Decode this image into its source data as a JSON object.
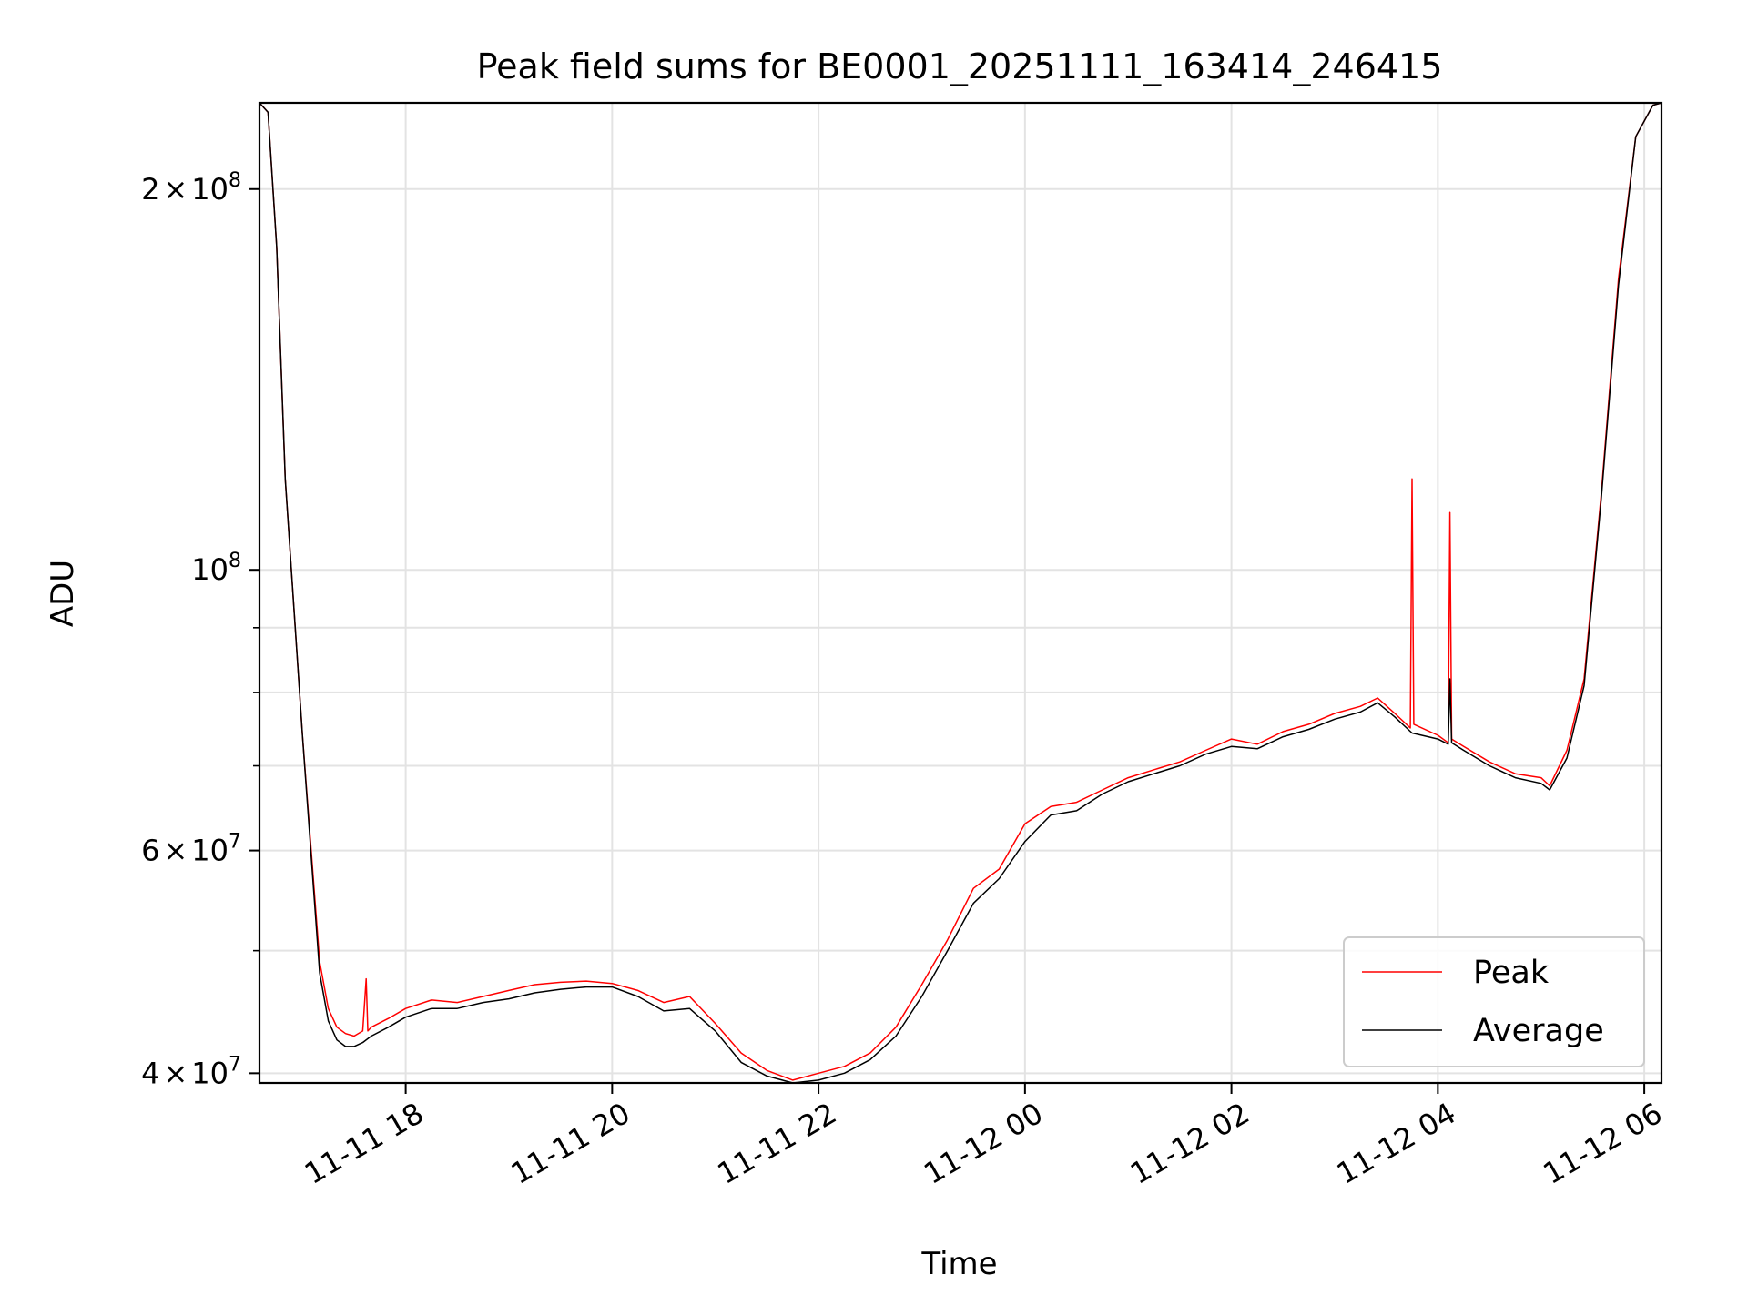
{
  "chart_data": {
    "type": "line",
    "title": "Peak field sums for BE0001_20251111_163414_246415",
    "xlabel": "Time",
    "ylabel": "ADU",
    "y_scale": "log",
    "grid": true,
    "legend_position": "lower-right",
    "xlim": [
      "2025-11-11 16:35",
      "2025-11-12 06:10"
    ],
    "ylim": [
      39300000,
      234000000
    ],
    "x_ticks": [
      {
        "value": "2025-11-11 18:00",
        "label": "11-11 18"
      },
      {
        "value": "2025-11-11 20:00",
        "label": "11-11 20"
      },
      {
        "value": "2025-11-11 22:00",
        "label": "11-11 22"
      },
      {
        "value": "2025-11-12 00:00",
        "label": "11-12 00"
      },
      {
        "value": "2025-11-12 02:00",
        "label": "11-12 02"
      },
      {
        "value": "2025-11-12 04:00",
        "label": "11-12 04"
      },
      {
        "value": "2025-11-12 06:00",
        "label": "11-12 06"
      }
    ],
    "y_ticks_major": [
      {
        "value": 40000000,
        "mantissa": "4",
        "times": "×",
        "base": "10",
        "exp": "7"
      },
      {
        "value": 60000000,
        "mantissa": "6",
        "times": "×",
        "base": "10",
        "exp": "7"
      },
      {
        "value": 100000000,
        "mantissa": "",
        "times": "",
        "base": "10",
        "exp": "8"
      },
      {
        "value": 200000000,
        "mantissa": "2",
        "times": "×",
        "base": "10",
        "exp": "8"
      }
    ],
    "y_ticks_minor": [
      50000000,
      70000000,
      80000000,
      90000000
    ],
    "series": [
      {
        "name": "Peak",
        "color": "#ff0000",
        "x": [
          "2025-11-11 16:35",
          "2025-11-11 16:40",
          "2025-11-11 16:45",
          "2025-11-11 16:50",
          "2025-11-11 17:00",
          "2025-11-11 17:10",
          "2025-11-11 17:15",
          "2025-11-11 17:20",
          "2025-11-11 17:25",
          "2025-11-11 17:30",
          "2025-11-11 17:35",
          "2025-11-11 17:37",
          "2025-11-11 17:38",
          "2025-11-11 17:40",
          "2025-11-11 17:50",
          "2025-11-11 18:00",
          "2025-11-11 18:15",
          "2025-11-11 18:30",
          "2025-11-11 18:45",
          "2025-11-11 19:00",
          "2025-11-11 19:15",
          "2025-11-11 19:30",
          "2025-11-11 19:45",
          "2025-11-11 20:00",
          "2025-11-11 20:15",
          "2025-11-11 20:30",
          "2025-11-11 20:45",
          "2025-11-11 21:00",
          "2025-11-11 21:15",
          "2025-11-11 21:30",
          "2025-11-11 21:45",
          "2025-11-11 22:00",
          "2025-11-11 22:15",
          "2025-11-11 22:30",
          "2025-11-11 22:45",
          "2025-11-11 23:00",
          "2025-11-11 23:15",
          "2025-11-11 23:30",
          "2025-11-11 23:45",
          "2025-11-12 00:00",
          "2025-11-12 00:15",
          "2025-11-12 00:30",
          "2025-11-12 00:45",
          "2025-11-12 01:00",
          "2025-11-12 01:15",
          "2025-11-12 01:30",
          "2025-11-12 01:45",
          "2025-11-12 02:00",
          "2025-11-12 02:15",
          "2025-11-12 02:30",
          "2025-11-12 02:45",
          "2025-11-12 03:00",
          "2025-11-12 03:15",
          "2025-11-12 03:25",
          "2025-11-12 03:35",
          "2025-11-12 03:44",
          "2025-11-12 03:45",
          "2025-11-12 03:46",
          "2025-11-12 04:00",
          "2025-11-12 04:06",
          "2025-11-12 04:07",
          "2025-11-12 04:08",
          "2025-11-12 04:15",
          "2025-11-12 04:30",
          "2025-11-12 04:45",
          "2025-11-12 05:00",
          "2025-11-12 05:05",
          "2025-11-12 05:15",
          "2025-11-12 05:25",
          "2025-11-12 05:35",
          "2025-11-12 05:45",
          "2025-11-12 05:55",
          "2025-11-12 06:05",
          "2025-11-12 06:10"
        ],
        "y": [
          234000000,
          230000000,
          180000000,
          118000000,
          74000000,
          49000000,
          45000000,
          43500000,
          43000000,
          42800000,
          43200000,
          47500000,
          43200000,
          43500000,
          44200000,
          45000000,
          45700000,
          45500000,
          46000000,
          46500000,
          47000000,
          47200000,
          47300000,
          47100000,
          46500000,
          45500000,
          46000000,
          43800000,
          41500000,
          40200000,
          39500000,
          40000000,
          40500000,
          41500000,
          43500000,
          47000000,
          51000000,
          56000000,
          58000000,
          63000000,
          65000000,
          65500000,
          67000000,
          68500000,
          69500000,
          70500000,
          72000000,
          73500000,
          72800000,
          74500000,
          75500000,
          77000000,
          78000000,
          79200000,
          77000000,
          75000000,
          118000000,
          75500000,
          74000000,
          73000000,
          111000000,
          73500000,
          72500000,
          70500000,
          69000000,
          68500000,
          67500000,
          72000000,
          82000000,
          115000000,
          170000000,
          220000000,
          233000000,
          234000000
        ]
      },
      {
        "name": "Average",
        "color": "#000000",
        "x": [
          "2025-11-11 16:35",
          "2025-11-11 16:40",
          "2025-11-11 16:45",
          "2025-11-11 16:50",
          "2025-11-11 17:00",
          "2025-11-11 17:10",
          "2025-11-11 17:15",
          "2025-11-11 17:20",
          "2025-11-11 17:25",
          "2025-11-11 17:30",
          "2025-11-11 17:35",
          "2025-11-11 17:40",
          "2025-11-11 17:50",
          "2025-11-11 18:00",
          "2025-11-11 18:15",
          "2025-11-11 18:30",
          "2025-11-11 18:45",
          "2025-11-11 19:00",
          "2025-11-11 19:15",
          "2025-11-11 19:30",
          "2025-11-11 19:45",
          "2025-11-11 20:00",
          "2025-11-11 20:15",
          "2025-11-11 20:30",
          "2025-11-11 20:45",
          "2025-11-11 21:00",
          "2025-11-11 21:15",
          "2025-11-11 21:30",
          "2025-11-11 21:45",
          "2025-11-11 22:00",
          "2025-11-11 22:15",
          "2025-11-11 22:30",
          "2025-11-11 22:45",
          "2025-11-11 23:00",
          "2025-11-11 23:15",
          "2025-11-11 23:30",
          "2025-11-11 23:45",
          "2025-11-12 00:00",
          "2025-11-12 00:15",
          "2025-11-12 00:30",
          "2025-11-12 00:45",
          "2025-11-12 01:00",
          "2025-11-12 01:15",
          "2025-11-12 01:30",
          "2025-11-12 01:45",
          "2025-11-12 02:00",
          "2025-11-12 02:15",
          "2025-11-12 02:30",
          "2025-11-12 02:45",
          "2025-11-12 03:00",
          "2025-11-12 03:15",
          "2025-11-12 03:25",
          "2025-11-12 03:35",
          "2025-11-12 03:45",
          "2025-11-12 04:00",
          "2025-11-12 04:06",
          "2025-11-12 04:07",
          "2025-11-12 04:08",
          "2025-11-12 04:15",
          "2025-11-12 04:30",
          "2025-11-12 04:45",
          "2025-11-12 05:00",
          "2025-11-12 05:05",
          "2025-11-12 05:15",
          "2025-11-12 05:25",
          "2025-11-12 05:35",
          "2025-11-12 05:45",
          "2025-11-12 05:55",
          "2025-11-12 06:05",
          "2025-11-12 06:10"
        ],
        "y": [
          234000000,
          230000000,
          180000000,
          118000000,
          74000000,
          48000000,
          44000000,
          42500000,
          42000000,
          42000000,
          42300000,
          42800000,
          43500000,
          44300000,
          45000000,
          45000000,
          45500000,
          45800000,
          46300000,
          46600000,
          46800000,
          46800000,
          46000000,
          44800000,
          45000000,
          43200000,
          40800000,
          39800000,
          39300000,
          39500000,
          40000000,
          41000000,
          42800000,
          46000000,
          50000000,
          54500000,
          57000000,
          61000000,
          64000000,
          64500000,
          66500000,
          68000000,
          69000000,
          70000000,
          71500000,
          72500000,
          72200000,
          73800000,
          74800000,
          76200000,
          77200000,
          78500000,
          76500000,
          74300000,
          73500000,
          72800000,
          82000000,
          73000000,
          72000000,
          70000000,
          68500000,
          67800000,
          67000000,
          71000000,
          81000000,
          114000000,
          168000000,
          220000000,
          233000000,
          234000000
        ]
      }
    ]
  }
}
